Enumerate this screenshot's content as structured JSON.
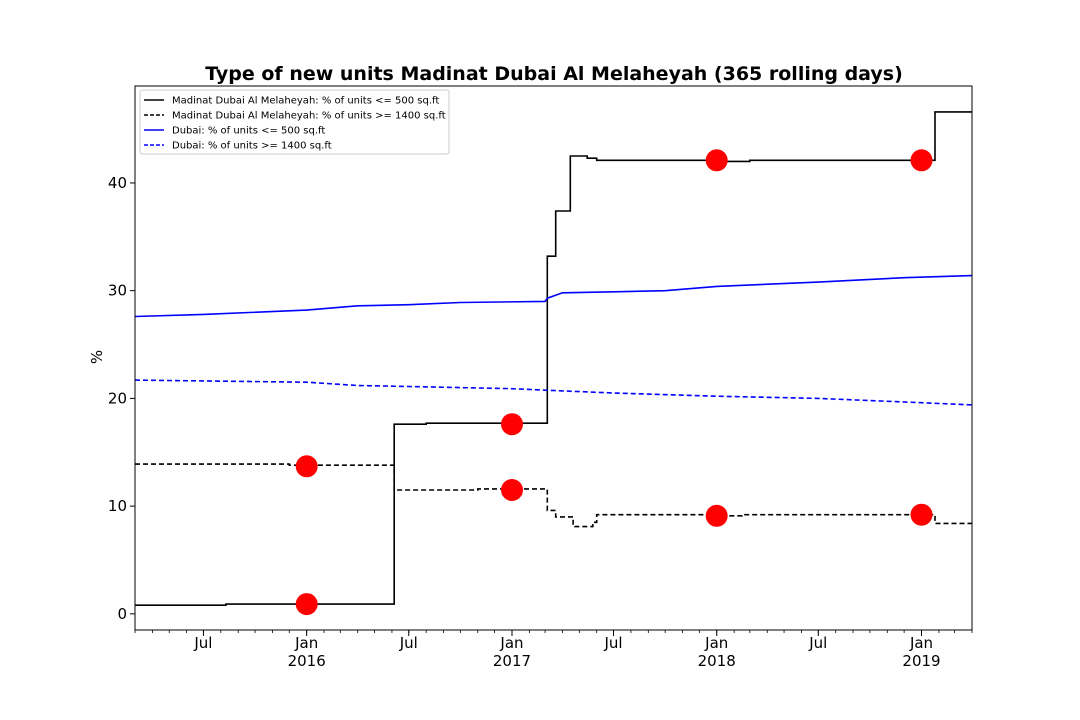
{
  "chart_data": {
    "type": "line",
    "title": "Type of new units Madinat Dubai Al Melaheyah (365 rolling days)",
    "xlabel": "",
    "ylabel": "%",
    "xlim": [
      "2015-03-01",
      "2019-04-01"
    ],
    "ylim": [
      -1.5,
      49
    ],
    "grid": false,
    "legend_position": "top-left",
    "y_ticks": [
      0,
      10,
      20,
      30,
      40
    ],
    "x_ticks": [
      {
        "date": "2015-07-01",
        "label": "Jul",
        "sublabel": ""
      },
      {
        "date": "2016-01-01",
        "label": "Jan",
        "sublabel": "2016"
      },
      {
        "date": "2016-07-01",
        "label": "Jul",
        "sublabel": ""
      },
      {
        "date": "2017-01-01",
        "label": "Jan",
        "sublabel": "2017"
      },
      {
        "date": "2017-07-01",
        "label": "Jul",
        "sublabel": ""
      },
      {
        "date": "2018-01-01",
        "label": "Jan",
        "sublabel": "2018"
      },
      {
        "date": "2018-07-01",
        "label": "Jul",
        "sublabel": ""
      },
      {
        "date": "2019-01-01",
        "label": "Jan",
        "sublabel": "2019"
      }
    ],
    "series": [
      {
        "name": "Madinat Dubai Al Melaheyah: % of units <= 500 sq.ft",
        "color": "#000000",
        "dash": "solid",
        "step": true,
        "points": [
          [
            "2015-03-01",
            0.8
          ],
          [
            "2015-08-10",
            0.9
          ],
          [
            "2016-06-05",
            17.6
          ],
          [
            "2016-08-01",
            17.7
          ],
          [
            "2017-03-05",
            33.2
          ],
          [
            "2017-03-20",
            37.4
          ],
          [
            "2017-04-15",
            42.5
          ],
          [
            "2017-05-15",
            42.3
          ],
          [
            "2017-06-01",
            42.1
          ],
          [
            "2018-01-15",
            42.0
          ],
          [
            "2018-03-01",
            42.1
          ],
          [
            "2019-01-25",
            46.6
          ],
          [
            "2019-04-01",
            46.6
          ]
        ]
      },
      {
        "name": "Madinat Dubai Al Melaheyah: % of units >= 1400 sq.ft",
        "color": "#000000",
        "dash": "dashed",
        "step": true,
        "points": [
          [
            "2015-03-01",
            13.9
          ],
          [
            "2015-12-01",
            13.8
          ],
          [
            "2016-06-05",
            11.5
          ],
          [
            "2016-11-01",
            11.6
          ],
          [
            "2017-03-05",
            9.6
          ],
          [
            "2017-03-20",
            9.0
          ],
          [
            "2017-04-20",
            8.1
          ],
          [
            "2017-05-25",
            8.5
          ],
          [
            "2017-06-01",
            9.2
          ],
          [
            "2018-01-10",
            9.1
          ],
          [
            "2018-02-15",
            9.2
          ],
          [
            "2019-01-25",
            8.4
          ],
          [
            "2019-04-01",
            8.4
          ]
        ]
      },
      {
        "name": "Dubai: % of units <= 500 sq.ft",
        "color": "#0000ff",
        "dash": "solid",
        "step": false,
        "points": [
          [
            "2015-03-01",
            27.6
          ],
          [
            "2015-07-01",
            27.8
          ],
          [
            "2016-01-01",
            28.2
          ],
          [
            "2016-04-01",
            28.6
          ],
          [
            "2016-07-01",
            28.7
          ],
          [
            "2016-10-01",
            28.9
          ],
          [
            "2017-03-01",
            29.0
          ],
          [
            "2017-03-05",
            29.3
          ],
          [
            "2017-04-01",
            29.8
          ],
          [
            "2017-07-01",
            29.9
          ],
          [
            "2017-10-01",
            30.0
          ],
          [
            "2018-01-01",
            30.4
          ],
          [
            "2018-07-01",
            30.8
          ],
          [
            "2018-12-01",
            31.2
          ],
          [
            "2019-04-01",
            31.4
          ]
        ]
      },
      {
        "name": "Dubai: % of units >= 1400 sq.ft",
        "color": "#0000ff",
        "dash": "dashed",
        "step": false,
        "points": [
          [
            "2015-03-01",
            21.7
          ],
          [
            "2016-01-01",
            21.5
          ],
          [
            "2016-04-01",
            21.2
          ],
          [
            "2016-07-01",
            21.1
          ],
          [
            "2017-01-01",
            20.9
          ],
          [
            "2017-04-01",
            20.7
          ],
          [
            "2017-07-01",
            20.5
          ],
          [
            "2018-01-01",
            20.2
          ],
          [
            "2018-07-01",
            20.0
          ],
          [
            "2019-01-01",
            19.6
          ],
          [
            "2019-04-01",
            19.4
          ]
        ]
      }
    ],
    "markers": {
      "color": "#ff0000",
      "points": [
        [
          "2016-01-01",
          0.9
        ],
        [
          "2016-01-01",
          13.7
        ],
        [
          "2017-01-01",
          17.6
        ],
        [
          "2017-01-01",
          11.5
        ],
        [
          "2018-01-01",
          42.1
        ],
        [
          "2018-01-01",
          9.1
        ],
        [
          "2019-01-01",
          42.1
        ],
        [
          "2019-01-01",
          9.2
        ]
      ]
    }
  }
}
